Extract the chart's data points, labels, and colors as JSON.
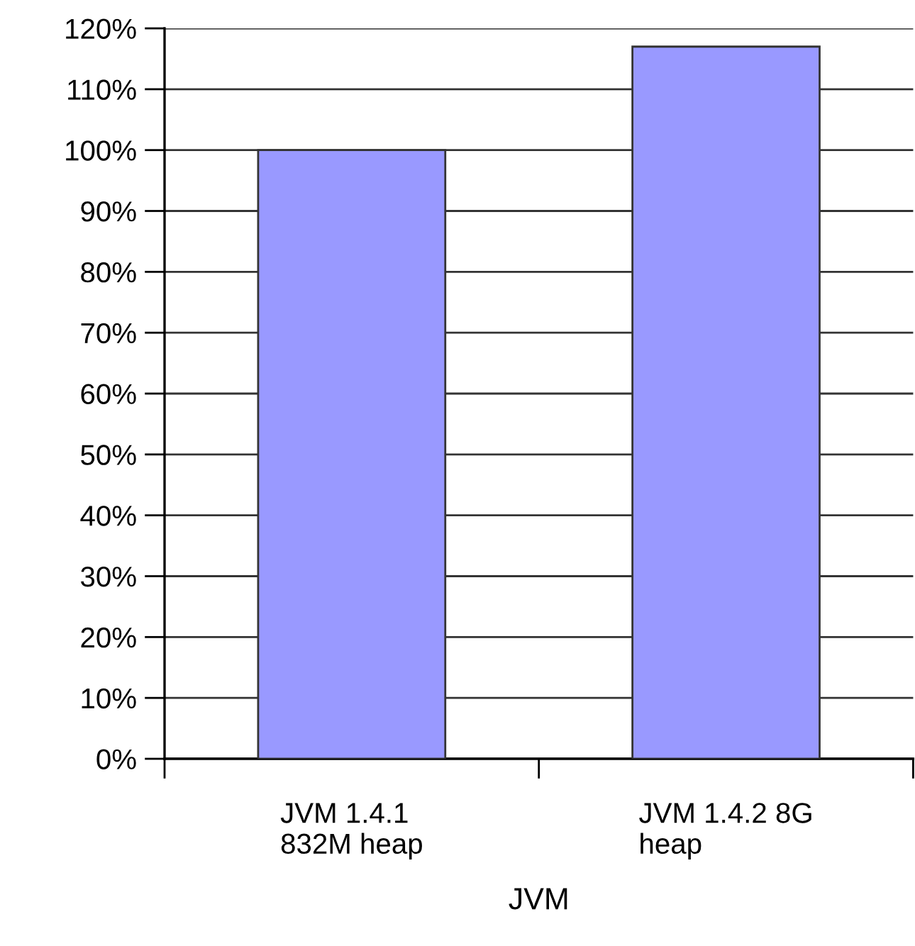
{
  "chart_data": {
    "type": "bar",
    "xlabel": "JVM",
    "categories": [
      "JVM 1.4.1\n832M heap",
      "JVM 1.4.2 8G\nheap"
    ],
    "values": [
      100,
      117
    ],
    "color": "#9999ff",
    "ylim": [
      0,
      120
    ],
    "yticks": [
      {
        "value": 0,
        "label": "0%"
      },
      {
        "value": 10,
        "label": "10%"
      },
      {
        "value": 20,
        "label": "20%"
      },
      {
        "value": 30,
        "label": "30%"
      },
      {
        "value": 40,
        "label": "40%"
      },
      {
        "value": 50,
        "label": "50%"
      },
      {
        "value": 60,
        "label": "60%"
      },
      {
        "value": 70,
        "label": "70%"
      },
      {
        "value": 80,
        "label": "80%"
      },
      {
        "value": 90,
        "label": "90%"
      },
      {
        "value": 100,
        "label": "100%"
      },
      {
        "value": 110,
        "label": "110%"
      },
      {
        "value": 120,
        "label": "120%"
      }
    ],
    "grid": "y"
  }
}
